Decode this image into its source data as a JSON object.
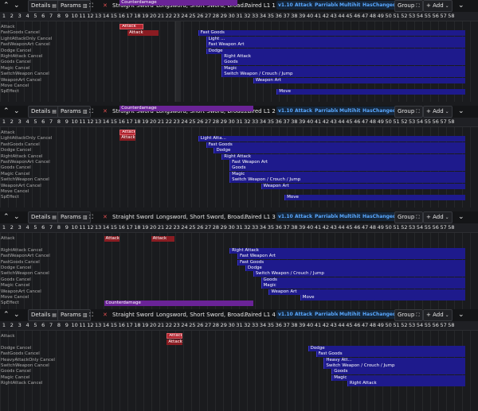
{
  "toolbar": {
    "up": "⌃",
    "down": "⌄",
    "details": "Details",
    "params": "Params",
    "animation": "Straight Sword",
    "weapons": "Longsword, Short Sword, Broad...",
    "version": "v1.10",
    "attack": "Attack",
    "parriable": "Parriable",
    "multihit": "Multihit",
    "haschanged": "HasChanged",
    "group": "Group",
    "add": "+ Add",
    "menu": "⌄",
    "close": "✕",
    "details_icon": "▤",
    "params_icon": "▥",
    "group_icon": "⛶"
  },
  "ruler": [
    "1",
    "2",
    "3",
    "4",
    "5",
    "6",
    "7",
    "8",
    "9",
    "10",
    "11",
    "12",
    "13",
    "14",
    "15",
    "16",
    "17",
    "18",
    "19",
    "20",
    "21",
    "22",
    "23",
    "24",
    "25",
    "26",
    "27",
    "28",
    "29",
    "30",
    "31",
    "32",
    "33",
    "34",
    "35",
    "36",
    "37",
    "38",
    "39",
    "40",
    "41",
    "42",
    "43",
    "44",
    "45",
    "46",
    "47",
    "48",
    "49",
    "50",
    "51",
    "52",
    "53",
    "54",
    "55",
    "56",
    "57",
    "58"
  ],
  "panels": [
    {
      "title": "Paired L1 1",
      "rows": [
        {
          "label": "Attack"
        },
        {
          "label": "FastGoods Cancel"
        },
        {
          "label": "LightAttackOnly Cancel"
        },
        {
          "label": "FastWeaponArt Cancel"
        },
        {
          "label": "Dodge Cancel"
        },
        {
          "label": "RightAttack Cancel"
        },
        {
          "label": "Goods Cancel"
        },
        {
          "label": "Magic Cancel"
        },
        {
          "label": "SwitchWeapon Cancel"
        },
        {
          "label": "WeaponArt Cancel"
        },
        {
          "label": "Move Cancel"
        },
        {
          "label": "SpEffect"
        }
      ],
      "events": [
        {
          "label": "Attack",
          "color": "red",
          "hl": true
        },
        {
          "label": "Attack",
          "color": "red"
        },
        {
          "label": "Fast Goods",
          "color": "blue"
        },
        {
          "label": "Light ...",
          "color": "blue"
        },
        {
          "label": "Fast Weapon Art",
          "color": "blue"
        },
        {
          "label": "Dodge",
          "color": "blue"
        },
        {
          "label": "Right Attack",
          "color": "blue"
        },
        {
          "label": "Goods",
          "color": "blue"
        },
        {
          "label": "Magic",
          "color": "blue"
        },
        {
          "label": "Switch Weapon / Crouch / Jump",
          "color": "blue"
        },
        {
          "label": "Weapon Art",
          "color": "blue"
        },
        {
          "label": "Move",
          "color": "blue"
        },
        {
          "label": "Counterdamage",
          "color": "purple"
        }
      ]
    },
    {
      "title": "Paired L1 2",
      "rows": [
        {
          "label": "Attack"
        },
        {
          "label": "LightAttackOnly Cancel"
        },
        {
          "label": "FastGoods Cancel"
        },
        {
          "label": "Dodge Cancel"
        },
        {
          "label": "RightAttack Cancel"
        },
        {
          "label": "FastWeaponArt Cancel"
        },
        {
          "label": "Goods Cancel"
        },
        {
          "label": "Magic Cancel"
        },
        {
          "label": "SwitchWeapon Cancel"
        },
        {
          "label": "WeaponArt Cancel"
        },
        {
          "label": "Move Cancel"
        },
        {
          "label": "SpEffect"
        }
      ],
      "events": [
        {
          "label": "Attack",
          "color": "red",
          "hl": true
        },
        {
          "label": "Attack",
          "color": "red"
        },
        {
          "label": "Light Atta...",
          "color": "blue"
        },
        {
          "label": "Fast Goods",
          "color": "blue"
        },
        {
          "label": "Dodge",
          "color": "blue"
        },
        {
          "label": "Right Attack",
          "color": "blue"
        },
        {
          "label": "Fast Weapon Art",
          "color": "blue"
        },
        {
          "label": "Goods",
          "color": "blue"
        },
        {
          "label": "Magic",
          "color": "blue"
        },
        {
          "label": "Switch Weapon / Crouch / Jump",
          "color": "blue"
        },
        {
          "label": "Weapon Art",
          "color": "blue"
        },
        {
          "label": "Move",
          "color": "blue"
        },
        {
          "label": "Counterdamage",
          "color": "purple"
        }
      ]
    },
    {
      "title": "Paired L1 3",
      "rows": [
        {
          "label": "Attack"
        },
        {
          "label": ""
        },
        {
          "label": "RightAttack Cancel"
        },
        {
          "label": "FastWeaponArt Cancel"
        },
        {
          "label": "FastGoods Cancel"
        },
        {
          "label": "Dodge Cancel"
        },
        {
          "label": "SwitchWeapon Cancel"
        },
        {
          "label": "Goods Cancel"
        },
        {
          "label": "Magic Cancel"
        },
        {
          "label": "WeaponArt Cancel"
        },
        {
          "label": "Move Cancel"
        },
        {
          "label": "SpEffect"
        }
      ],
      "events": [
        {
          "label": "Attack",
          "color": "red"
        },
        {
          "label": "Attack",
          "color": "red"
        },
        {
          "label": "Right Attack",
          "color": "blue"
        },
        {
          "label": "Fast Weapon Art",
          "color": "blue"
        },
        {
          "label": "Fast Goods",
          "color": "blue"
        },
        {
          "label": "Dodge",
          "color": "blue"
        },
        {
          "label": "Switch Weapon / Crouch / Jump",
          "color": "blue"
        },
        {
          "label": "Goods",
          "color": "blue"
        },
        {
          "label": "Magic",
          "color": "blue"
        },
        {
          "label": "Weapon Art",
          "color": "blue"
        },
        {
          "label": "Move",
          "color": "blue"
        },
        {
          "label": "Counterdamage",
          "color": "purple"
        }
      ]
    },
    {
      "title": "Paired L1 4",
      "rows": [
        {
          "label": "Attack"
        },
        {
          "label": ""
        },
        {
          "label": "Dodge Cancel"
        },
        {
          "label": "FastGoods Cancel"
        },
        {
          "label": "HeavyAttackOnly Cancel"
        },
        {
          "label": "SwitchWeapon Cancel"
        },
        {
          "label": "Goods Cancel"
        },
        {
          "label": "Magic Cancel"
        },
        {
          "label": "RightAttack Cancel"
        }
      ],
      "events": [
        {
          "label": "Attack",
          "color": "red",
          "hl": true
        },
        {
          "label": "Attack",
          "color": "red"
        },
        {
          "label": "Dodge",
          "color": "blue"
        },
        {
          "label": "Fast Goods",
          "color": "blue"
        },
        {
          "label": "Heavy Att...",
          "color": "blue"
        },
        {
          "label": "Switch Weapon / Crouch / Jump",
          "color": "blue"
        },
        {
          "label": "Goods",
          "color": "blue"
        },
        {
          "label": "Magic",
          "color": "blue"
        },
        {
          "label": "Right Attack",
          "color": "blue"
        }
      ]
    }
  ]
}
